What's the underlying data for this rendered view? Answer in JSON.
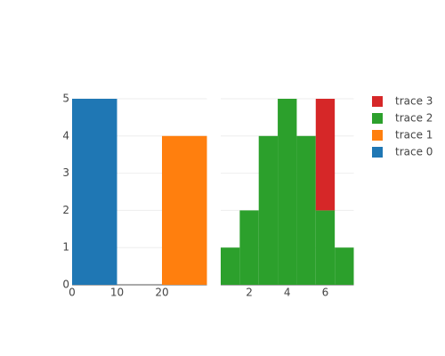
{
  "chart_data": [
    {
      "type": "histogram",
      "xlim": [
        0,
        30
      ],
      "xticks": [
        0,
        10,
        20
      ],
      "ylim": [
        0,
        5
      ],
      "yticks": [
        0,
        1,
        2,
        3,
        4,
        5
      ],
      "grid": true,
      "series": [
        {
          "name": "trace 0",
          "color": "#1f77b4",
          "bins": [
            0,
            10
          ],
          "values": [
            5
          ]
        },
        {
          "name": "trace 1",
          "color": "#ff7f0e",
          "bins": [
            20,
            30
          ],
          "values": [
            4
          ]
        }
      ]
    },
    {
      "type": "histogram",
      "barmode": "stack",
      "xlim": [
        0.5,
        7.5
      ],
      "xticks": [
        2,
        4,
        6
      ],
      "ylim": [
        0,
        5
      ],
      "grid": true,
      "series": [
        {
          "name": "trace 2",
          "color": "#2ca02c",
          "bins": [
            0.5,
            1.5,
            2.5,
            3.5,
            4.5,
            5.5,
            6.5,
            7.5
          ],
          "values": [
            1,
            2,
            4,
            5,
            4,
            2,
            1
          ]
        },
        {
          "name": "trace 3",
          "color": "#d62728",
          "bins": [
            5.5,
            6.5
          ],
          "values": [
            3
          ]
        }
      ]
    }
  ]
}
